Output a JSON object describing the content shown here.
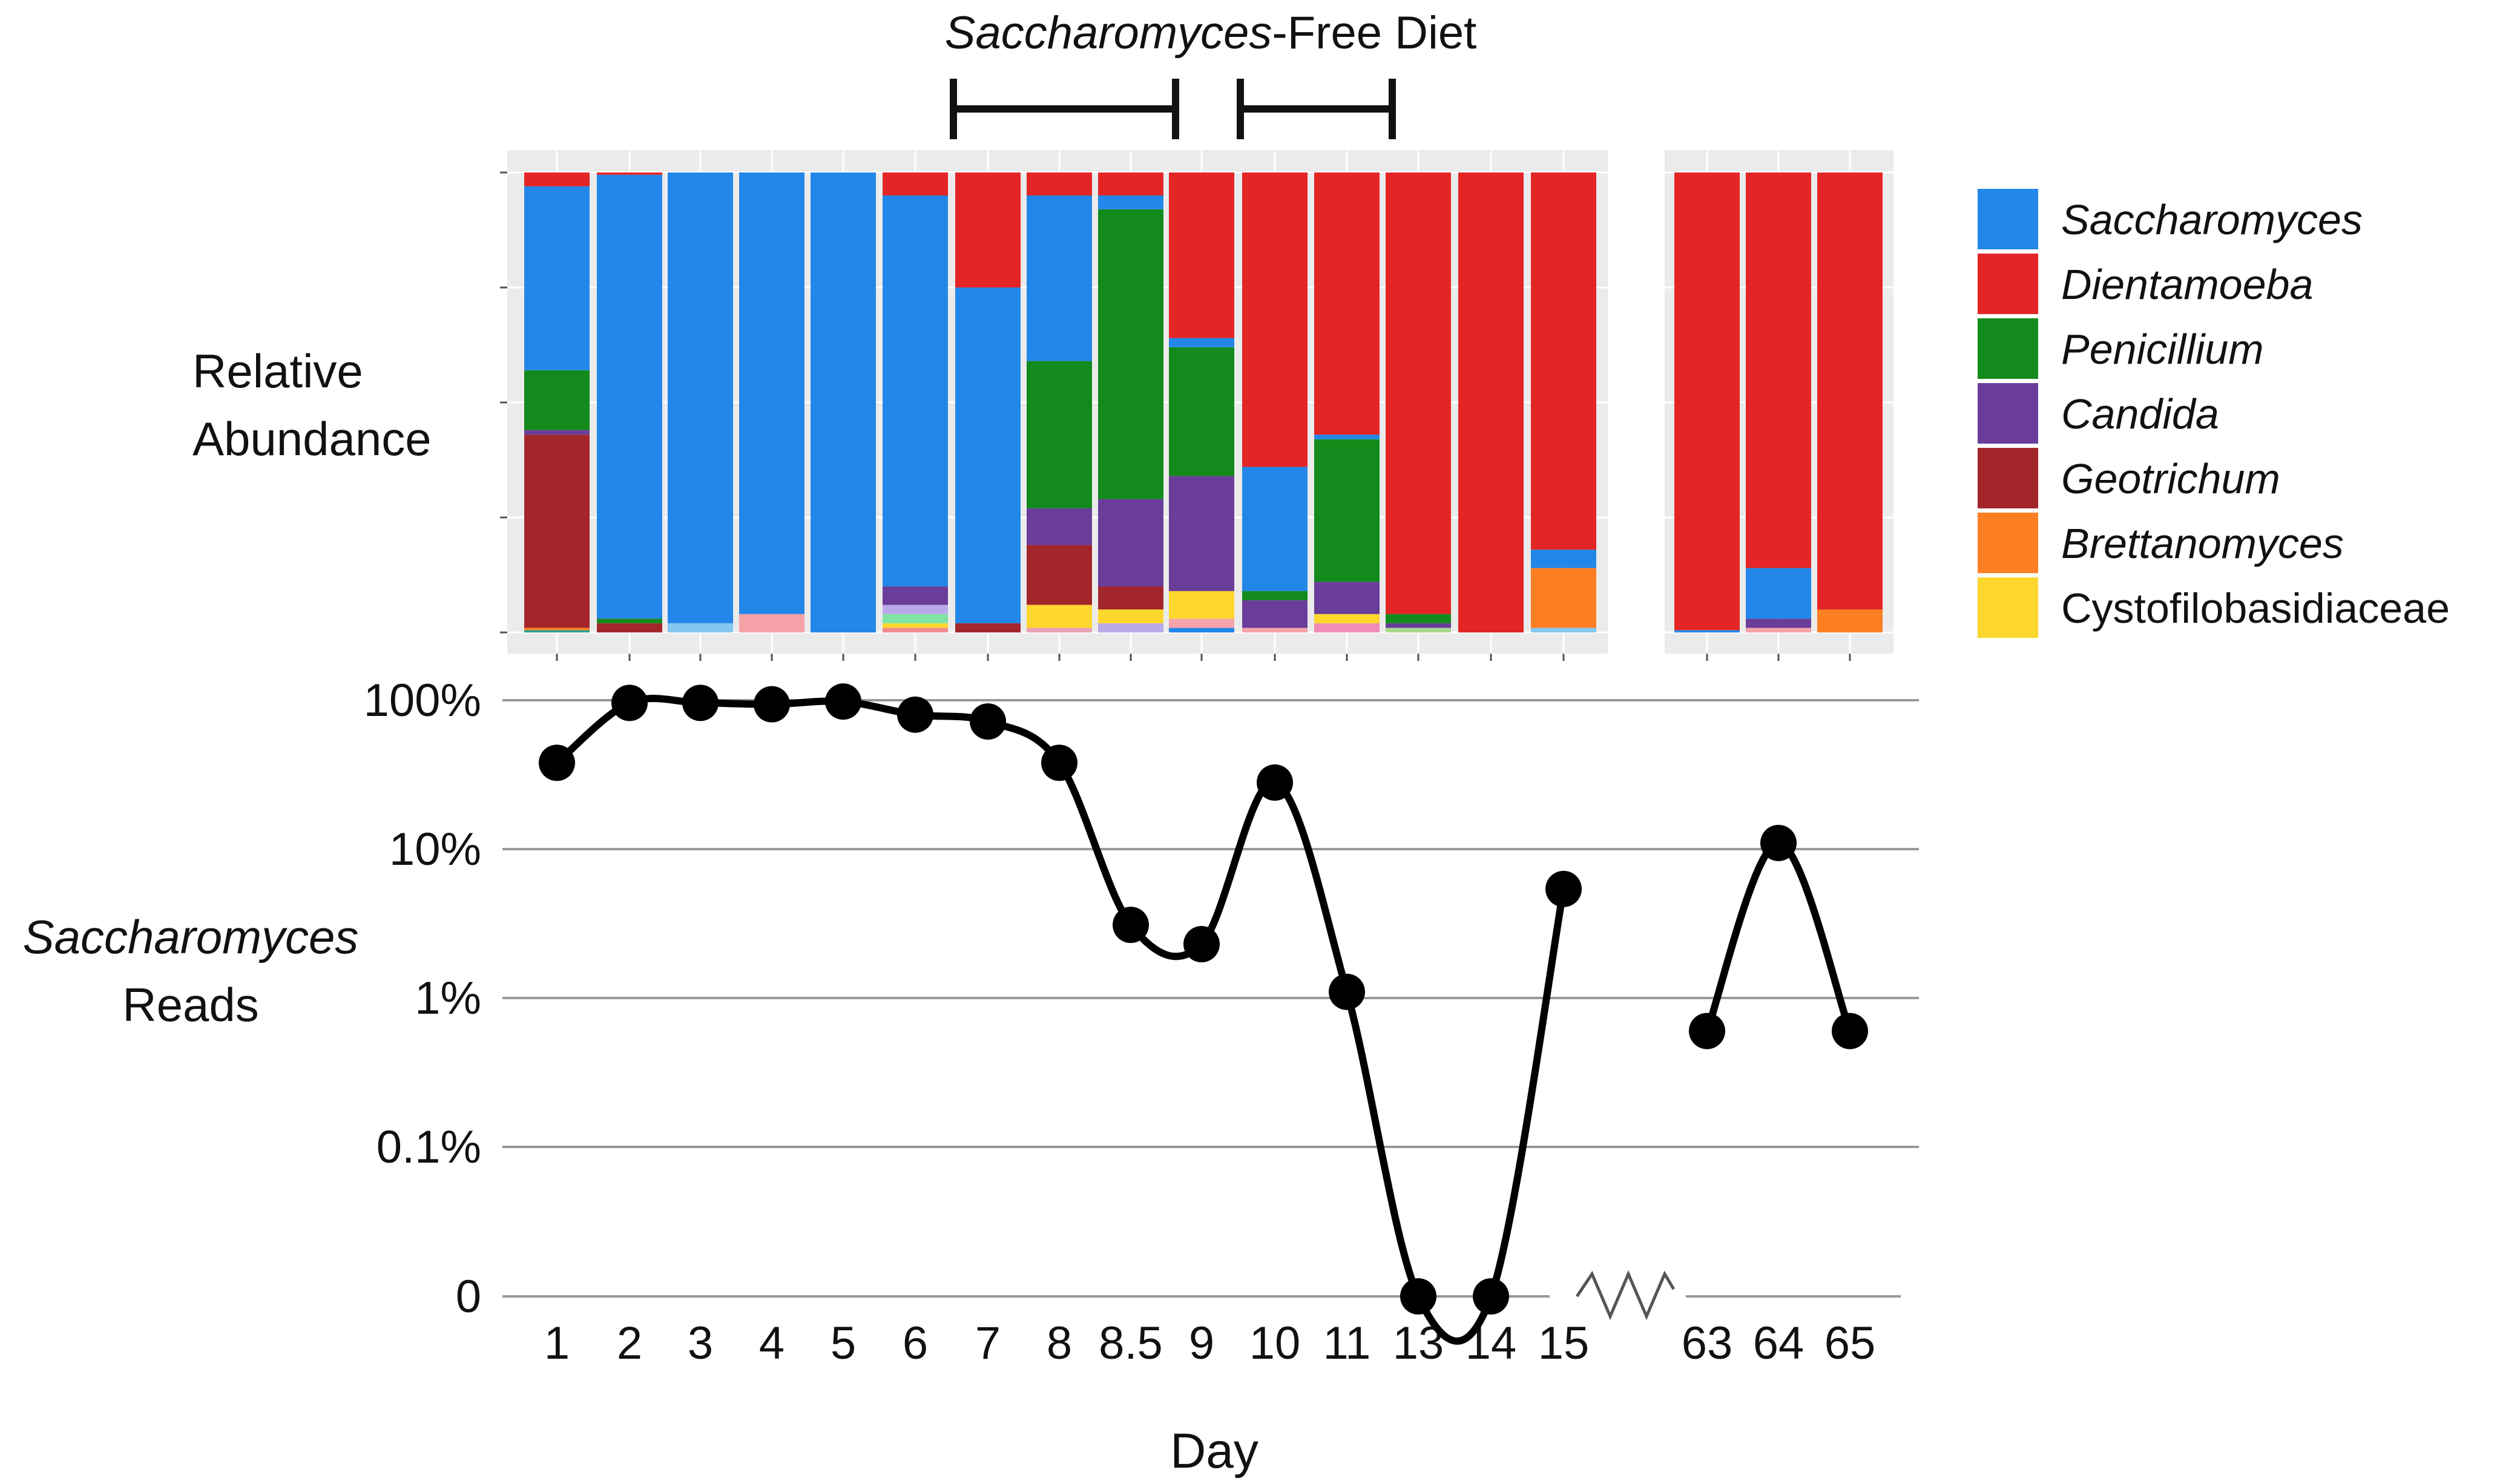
{
  "figure": {
    "annotation": {
      "title_italic": "Saccharomyces",
      "title_rest": "-Free Diet",
      "periods": [
        {
          "from": "7",
          "to": "9"
        },
        {
          "from": "10",
          "to": "13"
        }
      ]
    }
  },
  "chart_data": [
    {
      "type": "bar",
      "stacked": true,
      "ylabel": "Relative Abundance",
      "categories": [
        "1",
        "2",
        "3",
        "4",
        "5",
        "6",
        "7",
        "8",
        "8.5",
        "9",
        "10",
        "11",
        "13",
        "14",
        "15",
        "63",
        "64",
        "65"
      ],
      "panel_break_after": "15",
      "grid": true,
      "legend_placement": "right",
      "legend": [
        {
          "name": "Saccharomyces",
          "color": "#2387e9",
          "italic": true
        },
        {
          "name": "Dientamoeba",
          "color": "#e32526",
          "italic": true
        },
        {
          "name": "Penicillium",
          "color": "#138a1c",
          "italic": true
        },
        {
          "name": "Candida",
          "color": "#6a3d9a",
          "italic": true
        },
        {
          "name": "Geotrichum",
          "color": "#a3262b",
          "italic": true
        },
        {
          "name": "Brettanomyces",
          "color": "#fd7f23",
          "italic": true
        },
        {
          "name": "Cystofilobasidiaceae",
          "color": "#fed72e",
          "italic": false
        }
      ],
      "stacks": [
        [
          {
            "taxon": "other",
            "color": "#2c9e90",
            "v": 0.005
          },
          {
            "taxon": "Brettanomyces",
            "v": 0.005
          },
          {
            "taxon": "Geotrichum",
            "v": 0.42
          },
          {
            "taxon": "Candida",
            "v": 0.01
          },
          {
            "taxon": "Penicillium",
            "v": 0.13
          },
          {
            "taxon": "Saccharomyces",
            "v": 0.4
          },
          {
            "taxon": "Dientamoeba",
            "v": 0.03
          }
        ],
        [
          {
            "taxon": "Geotrichum",
            "v": 0.02
          },
          {
            "taxon": "Penicillium",
            "v": 0.01
          },
          {
            "taxon": "Saccharomyces",
            "v": 0.965
          },
          {
            "taxon": "Dientamoeba",
            "v": 0.005
          }
        ],
        [
          {
            "taxon": "other",
            "color": "#86c7f0",
            "v": 0.02
          },
          {
            "taxon": "Saccharomyces",
            "v": 0.98
          }
        ],
        [
          {
            "taxon": "other",
            "color": "#f5a3a8",
            "v": 0.04
          },
          {
            "taxon": "Saccharomyces",
            "v": 0.96
          }
        ],
        [
          {
            "taxon": "Saccharomyces",
            "v": 1.0
          }
        ],
        [
          {
            "taxon": "other",
            "color": "#f08c8c",
            "v": 0.01
          },
          {
            "taxon": "Cystofilobasidiaceae",
            "v": 0.01
          },
          {
            "taxon": "other",
            "color": "#7fe3a6",
            "v": 0.02
          },
          {
            "taxon": "other",
            "color": "#b8a9e8",
            "v": 0.02
          },
          {
            "taxon": "Candida",
            "v": 0.04
          },
          {
            "taxon": "Saccharomyces",
            "v": 0.85
          },
          {
            "taxon": "Dientamoeba",
            "v": 0.05
          }
        ],
        [
          {
            "taxon": "Geotrichum",
            "v": 0.02
          },
          {
            "taxon": "Saccharomyces",
            "v": 0.73
          },
          {
            "taxon": "Dientamoeba",
            "v": 0.25
          }
        ],
        [
          {
            "taxon": "other",
            "color": "#e8a2b3",
            "v": 0.01
          },
          {
            "taxon": "Cystofilobasidiaceae",
            "v": 0.05
          },
          {
            "taxon": "Geotrichum",
            "v": 0.13
          },
          {
            "taxon": "Candida",
            "v": 0.08
          },
          {
            "taxon": "Penicillium",
            "v": 0.32
          },
          {
            "taxon": "Saccharomyces",
            "v": 0.36
          },
          {
            "taxon": "Dientamoeba",
            "v": 0.05
          }
        ],
        [
          {
            "taxon": "other",
            "color": "#b8a9e8",
            "v": 0.02
          },
          {
            "taxon": "Cystofilobasidiaceae",
            "v": 0.03
          },
          {
            "taxon": "Geotrichum",
            "v": 0.05
          },
          {
            "taxon": "Candida",
            "v": 0.19
          },
          {
            "taxon": "Penicillium",
            "v": 0.63
          },
          {
            "taxon": "Saccharomyces",
            "v": 0.03
          },
          {
            "taxon": "Dientamoeba",
            "v": 0.05
          }
        ],
        [
          {
            "taxon": "other",
            "color": "#2387e9",
            "v": 0.01
          },
          {
            "taxon": "other",
            "color": "#f5a3a8",
            "v": 0.02
          },
          {
            "taxon": "Cystofilobasidiaceae",
            "v": 0.06
          },
          {
            "taxon": "Candida",
            "v": 0.25
          },
          {
            "taxon": "Penicillium",
            "v": 0.28
          },
          {
            "taxon": "Saccharomyces",
            "v": 0.02
          },
          {
            "taxon": "Dientamoeba",
            "v": 0.36
          }
        ],
        [
          {
            "taxon": "other",
            "color": "#f5a3a8",
            "v": 0.01
          },
          {
            "taxon": "Candida",
            "v": 0.06
          },
          {
            "taxon": "Penicillium",
            "v": 0.02
          },
          {
            "taxon": "Saccharomyces",
            "v": 0.27
          },
          {
            "taxon": "Dientamoeba",
            "v": 0.64
          }
        ],
        [
          {
            "taxon": "other",
            "color": "#f08cb5",
            "v": 0.02
          },
          {
            "taxon": "Cystofilobasidiaceae",
            "v": 0.02
          },
          {
            "taxon": "Candida",
            "v": 0.07
          },
          {
            "taxon": "Penicillium",
            "v": 0.31
          },
          {
            "taxon": "Saccharomyces",
            "v": 0.01
          },
          {
            "taxon": "Dientamoeba",
            "v": 0.57
          }
        ],
        [
          {
            "taxon": "other",
            "color": "#a7d98f",
            "v": 0.01
          },
          {
            "taxon": "other",
            "color": "#6a3d9a",
            "v": 0.01
          },
          {
            "taxon": "Penicillium",
            "v": 0.02
          },
          {
            "taxon": "Dientamoeba",
            "v": 0.96
          }
        ],
        [
          {
            "taxon": "Dientamoeba",
            "v": 1.0
          }
        ],
        [
          {
            "taxon": "other",
            "color": "#86c7f0",
            "v": 0.01
          },
          {
            "taxon": "Brettanomyces",
            "v": 0.13
          },
          {
            "taxon": "Saccharomyces",
            "v": 0.04
          },
          {
            "taxon": "Dientamoeba",
            "v": 0.82
          }
        ],
        [
          {
            "taxon": "other",
            "color": "#2387e9",
            "v": 0.005
          },
          {
            "taxon": "Dientamoeba",
            "v": 0.995
          }
        ],
        [
          {
            "taxon": "other",
            "color": "#f5a3a8",
            "v": 0.01
          },
          {
            "taxon": "Candida",
            "v": 0.02
          },
          {
            "taxon": "Saccharomyces",
            "v": 0.11
          },
          {
            "taxon": "Dientamoeba",
            "v": 0.86
          }
        ],
        [
          {
            "taxon": "Brettanomyces",
            "v": 0.05
          },
          {
            "taxon": "Dientamoeba",
            "v": 0.95
          }
        ]
      ]
    },
    {
      "type": "line",
      "ylabel_italic": "Saccharomyces",
      "ylabel_rest": "Reads",
      "xlabel": "Day",
      "yscale": "log",
      "ylim": [
        0,
        100
      ],
      "grid": true,
      "y_ticks": [
        {
          "label": "0",
          "value": 0
        },
        {
          "label": "0.1%",
          "value": 0.1
        },
        {
          "label": "1%",
          "value": 1
        },
        {
          "label": "10%",
          "value": 10
        },
        {
          "label": "100%",
          "value": 100
        }
      ],
      "x": [
        "1",
        "2",
        "3",
        "4",
        "5",
        "6",
        "7",
        "8",
        "8.5",
        "9",
        "10",
        "11",
        "13",
        "14",
        "15",
        "63",
        "64",
        "65"
      ],
      "axis_break_after": "15",
      "segments": [
        {
          "name": "",
          "x": [
            "1",
            "2",
            "3",
            "4",
            "5",
            "6",
            "7",
            "8",
            "8.5",
            "9",
            "10",
            "11",
            "13",
            "14",
            "15"
          ],
          "y": [
            38,
            96,
            96,
            94,
            98,
            80,
            72,
            38,
            3.1,
            2.3,
            28,
            1.1,
            0,
            0,
            5.4
          ]
        },
        {
          "name": "",
          "x": [
            "63",
            "64",
            "65"
          ],
          "y": [
            0.6,
            11,
            0.6
          ]
        }
      ]
    }
  ]
}
